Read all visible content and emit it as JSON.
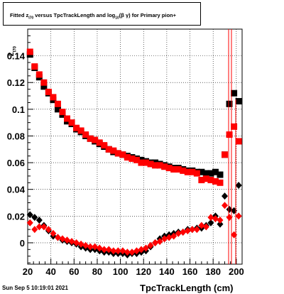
{
  "title": {
    "part1": "Fitted  z",
    "sub1": "I70",
    "part2": "  versus TpcTrackLength and log",
    "sub2": "10",
    "part3": "(β  γ) for Primary pion+"
  },
  "axis_y_label": "z",
  "axis_y_label_sub": "I70",
  "axis_x_label": "TpcTrackLength (cm)",
  "datestamp": "Sun Sep  5 10:19:01 2021",
  "colors": {
    "series_black": "#000000",
    "series_red": "#ff0000",
    "frame": "#000000",
    "grid": "#000000",
    "bg": "#ffffff"
  },
  "chart_data": {
    "type": "scatter",
    "xlim": [
      20,
      205
    ],
    "ylim": [
      -0.016,
      0.16
    ],
    "grid": true,
    "x_ticks": [
      20,
      40,
      60,
      80,
      100,
      120,
      140,
      160,
      180,
      200
    ],
    "y_ticks": [
      0,
      0.02,
      0.04,
      0.06,
      0.08,
      0.1,
      0.12,
      0.14
    ],
    "y_tick_labels": [
      "0",
      "0.02",
      "0.04",
      "0.06",
      "0.08",
      "0.1",
      "0.12",
      "0.14"
    ],
    "x_tick_labels": [
      "20",
      "40",
      "60",
      "80",
      "100",
      "120",
      "140",
      "160",
      "180",
      "200"
    ],
    "series": [
      {
        "marker": "square",
        "color": "black",
        "x": [
          22,
          26,
          30,
          34,
          38,
          42,
          46,
          50,
          54,
          58,
          62,
          66,
          70,
          74,
          78,
          82,
          86,
          90,
          94,
          98,
          102,
          106,
          110,
          114,
          118,
          122,
          126,
          130,
          134,
          138,
          142,
          146,
          150,
          154,
          158,
          162,
          166,
          170,
          174,
          178,
          182,
          186,
          190,
          194,
          198,
          202
        ],
        "y": [
          0.141,
          0.131,
          0.124,
          0.117,
          0.112,
          0.107,
          0.1,
          0.096,
          0.091,
          0.089,
          0.085,
          0.083,
          0.08,
          0.078,
          0.076,
          0.074,
          0.072,
          0.07,
          0.068,
          0.067,
          0.066,
          0.065,
          0.064,
          0.063,
          0.062,
          0.061,
          0.06,
          0.06,
          0.059,
          0.058,
          0.057,
          0.056,
          0.056,
          0.055,
          0.054,
          0.054,
          0.053,
          0.053,
          0.052,
          0.052,
          0.053,
          0.051,
          0.066,
          0.104,
          0.112,
          0.106
        ]
      },
      {
        "marker": "square",
        "color": "red",
        "x": [
          22,
          26,
          30,
          34,
          38,
          42,
          46,
          50,
          54,
          58,
          62,
          66,
          70,
          74,
          78,
          82,
          86,
          90,
          94,
          98,
          102,
          106,
          110,
          114,
          118,
          122,
          126,
          130,
          134,
          138,
          142,
          146,
          150,
          154,
          158,
          162,
          166,
          170,
          174,
          178,
          182,
          186,
          190,
          194,
          198,
          202
        ],
        "y": [
          0.143,
          0.132,
          0.126,
          0.12,
          0.113,
          0.109,
          0.104,
          0.098,
          0.093,
          0.09,
          0.086,
          0.084,
          0.081,
          0.078,
          0.077,
          0.075,
          0.073,
          0.07,
          0.069,
          0.067,
          0.066,
          0.064,
          0.063,
          0.062,
          0.06,
          0.06,
          0.059,
          0.058,
          0.058,
          0.057,
          0.056,
          0.055,
          0.055,
          0.054,
          0.053,
          0.053,
          0.052,
          0.047,
          0.048,
          0.047,
          0.046,
          0.045,
          0.066,
          0.081,
          0.087,
          0.076
        ]
      },
      {
        "marker": "diamond",
        "color": "black",
        "x": [
          22,
          26,
          30,
          34,
          38,
          42,
          46,
          50,
          54,
          58,
          62,
          66,
          70,
          74,
          78,
          82,
          86,
          90,
          94,
          98,
          102,
          106,
          110,
          114,
          118,
          122,
          126,
          130,
          134,
          138,
          142,
          146,
          150,
          154,
          158,
          162,
          166,
          170,
          174,
          178,
          182,
          186,
          190,
          194,
          198,
          202
        ],
        "y": [
          0.021,
          0.019,
          0.017,
          0.013,
          0.009,
          0.005,
          0.004,
          0.002,
          0.001,
          0.0,
          -0.001,
          -0.003,
          -0.004,
          -0.005,
          -0.005,
          -0.006,
          -0.007,
          -0.007,
          -0.008,
          -0.008,
          -0.008,
          -0.009,
          -0.008,
          -0.008,
          -0.007,
          -0.006,
          -0.003,
          0.0,
          0.003,
          0.005,
          0.006,
          0.007,
          0.008,
          0.008,
          0.01,
          0.01,
          0.011,
          0.011,
          0.013,
          0.015,
          0.02,
          0.014,
          0.035,
          0.025,
          0.024,
          0.043
        ]
      },
      {
        "marker": "diamond",
        "color": "red",
        "x": [
          22,
          26,
          30,
          34,
          38,
          42,
          46,
          50,
          54,
          58,
          62,
          66,
          70,
          74,
          78,
          82,
          86,
          90,
          94,
          98,
          102,
          106,
          110,
          114,
          118,
          122,
          126,
          130,
          134,
          138,
          142,
          146,
          150,
          154,
          158,
          162,
          166,
          170,
          174,
          178,
          182,
          186,
          190,
          194,
          198,
          202
        ],
        "y": [
          0.015,
          0.01,
          0.012,
          0.012,
          0.01,
          0.007,
          0.004,
          0.003,
          0.002,
          0.001,
          0.0,
          -0.001,
          -0.002,
          -0.003,
          -0.003,
          -0.004,
          -0.005,
          -0.005,
          -0.006,
          -0.006,
          -0.006,
          -0.007,
          -0.007,
          -0.006,
          -0.005,
          -0.004,
          -0.002,
          0.0,
          0.001,
          0.003,
          0.004,
          0.005,
          0.007,
          0.008,
          0.009,
          0.01,
          0.01,
          0.013,
          0.012,
          0.019,
          0.018,
          0.017,
          0.028,
          0.019,
          0.006,
          0.02
        ]
      }
    ]
  }
}
